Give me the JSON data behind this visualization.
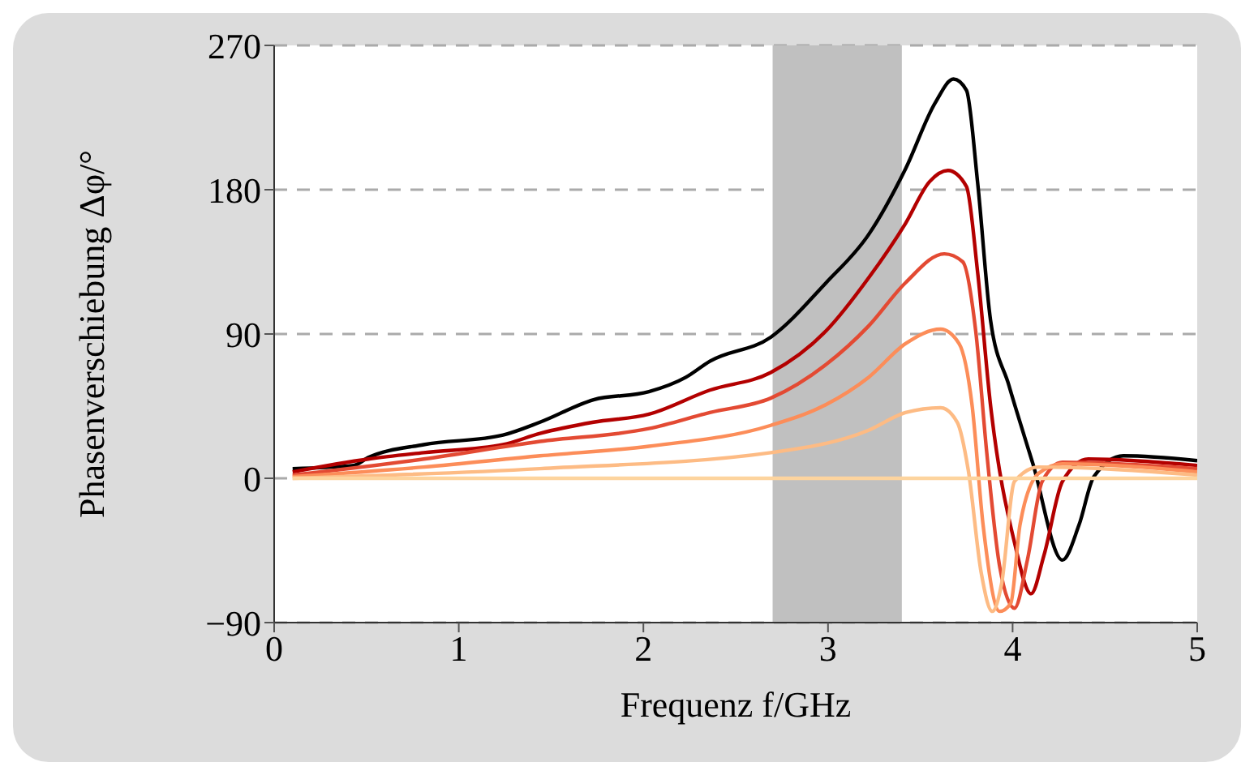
{
  "chart_data": {
    "type": "line",
    "xlabel": "Frequenz f/GHz",
    "ylabel": "Phasenverschiebung Δφ/°",
    "xlim": [
      0,
      5
    ],
    "xticks": [
      0,
      1,
      2,
      3,
      4,
      5
    ],
    "ylim": [
      -90,
      270
    ],
    "yticks": [
      -90,
      0,
      90,
      180,
      270
    ],
    "grid": "y",
    "marker": "none",
    "line_style": "solid",
    "bands": [
      {
        "axis": "x",
        "from": 2.7,
        "to": 3.4,
        "color": "#c0c0c0"
      }
    ],
    "series": [
      {
        "color": "#000000",
        "x": [
          0.1,
          0.43,
          0.51,
          0.81,
          1.24,
          1.44,
          1.73,
          2.03,
          2.23,
          2.36,
          2.69,
          2.99,
          3.22,
          3.42,
          3.58,
          3.68,
          3.75,
          3.81,
          3.88,
          3.98,
          4.11,
          4.27,
          4.36,
          4.44,
          4.6,
          5.0
        ],
        "values": [
          6,
          8,
          13,
          21,
          27,
          35,
          49,
          54,
          63,
          73,
          88,
          122,
          152,
          193,
          234,
          249,
          242,
          185,
          99,
          58,
          9,
          -51,
          -29,
          1,
          14,
          11
        ]
      },
      {
        "color": "#b30000",
        "x": [
          0.1,
          0.51,
          0.81,
          1.24,
          1.44,
          1.73,
          2.03,
          2.36,
          2.69,
          2.99,
          3.22,
          3.42,
          3.55,
          3.65,
          3.75,
          3.81,
          3.88,
          4.01,
          4.1,
          4.17,
          4.27,
          4.41,
          5.0
        ],
        "values": [
          4,
          12,
          16,
          21,
          28,
          35,
          40,
          55,
          66,
          92,
          125,
          159,
          185,
          192,
          182,
          129,
          46,
          -40,
          -72,
          -48,
          -2,
          12,
          8
        ]
      },
      {
        "color": "#e34a33",
        "x": [
          0.1,
          0.81,
          1.44,
          2.03,
          2.36,
          2.69,
          2.99,
          3.22,
          3.42,
          3.63,
          3.73,
          3.8,
          3.86,
          3.93,
          4.01,
          4.08,
          4.16,
          4.27,
          5.0
        ],
        "values": [
          2,
          12,
          23,
          31,
          41,
          50,
          71,
          95,
          122,
          140,
          135,
          92,
          16,
          -55,
          -81,
          -51,
          -2,
          10,
          6
        ]
      },
      {
        "color": "#fc8d59",
        "x": [
          0.1,
          0.81,
          1.44,
          2.03,
          2.69,
          2.99,
          3.22,
          3.42,
          3.61,
          3.71,
          3.78,
          3.84,
          3.93,
          3.99,
          4.04,
          4.14,
          4.27,
          5.0
        ],
        "values": [
          1,
          7,
          14,
          20,
          33,
          46,
          63,
          84,
          93,
          84,
          46,
          -29,
          -83,
          -78,
          -29,
          3,
          9,
          4
        ]
      },
      {
        "color": "#fdbb84",
        "x": [
          0.1,
          1.44,
          2.69,
          3.22,
          3.42,
          3.61,
          3.7,
          3.76,
          3.83,
          3.89,
          3.94,
          4.01,
          4.14,
          5.0
        ],
        "values": [
          0,
          6,
          16,
          30,
          41,
          44,
          35,
          5,
          -59,
          -83,
          -66,
          -2,
          7,
          2
        ]
      },
      {
        "color": "#fdd49e",
        "x": [
          0.1,
          5.0
        ],
        "values": [
          0,
          0
        ]
      }
    ]
  }
}
